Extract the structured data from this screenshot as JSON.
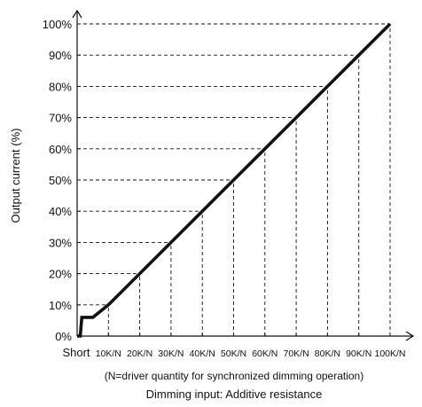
{
  "chart_data": {
    "type": "line",
    "ylabel": "Output current (%)",
    "xlabel": "Dimming input: Additive resistance",
    "note": "(N=driver quantity for synchronized dimming operation)",
    "x_short_label": "Short",
    "x_categories": [
      "10K/N",
      "20K/N",
      "30K/N",
      "40K/N",
      "50K/N",
      "60K/N",
      "70K/N",
      "80K/N",
      "90K/N",
      "100K/N"
    ],
    "y_ticks": [
      "0%",
      "10%",
      "20%",
      "30%",
      "40%",
      "50%",
      "60%",
      "70%",
      "80%",
      "90%",
      "100%"
    ],
    "ylim": [
      0,
      100
    ],
    "xlim": [
      0,
      100
    ],
    "grid": "dashed",
    "series": [
      {
        "x": [
          0,
          1,
          1.5,
          5,
          10,
          20,
          30,
          40,
          50,
          60,
          70,
          80,
          90,
          100
        ],
        "y": [
          0,
          0,
          6,
          6,
          10,
          20,
          30,
          40,
          50,
          60,
          70,
          80,
          90,
          100
        ]
      }
    ],
    "colors": {
      "line": "#111111",
      "axis": "#111111",
      "grid": "#111111"
    }
  }
}
